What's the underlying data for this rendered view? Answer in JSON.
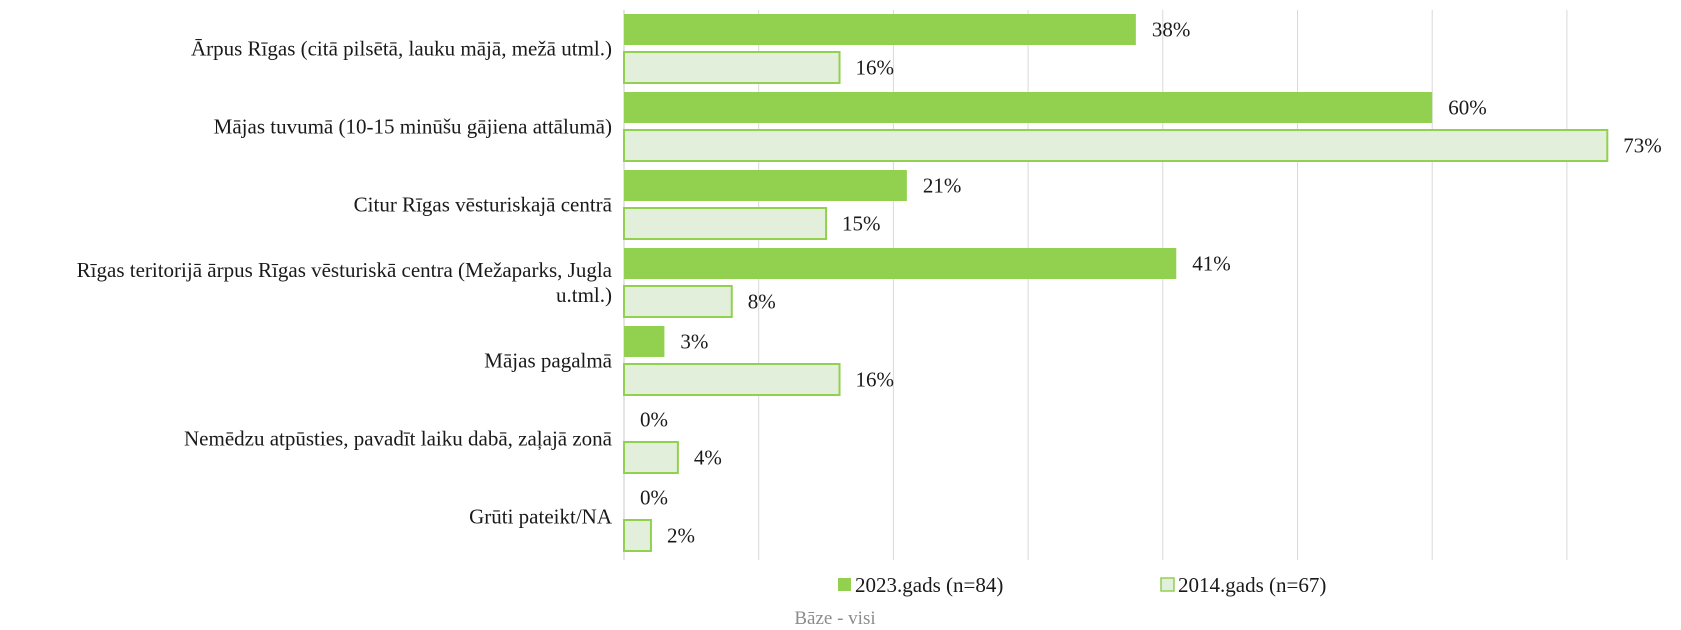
{
  "chart_data": {
    "type": "bar",
    "orientation": "horizontal",
    "categories": [
      [
        "Ārpus Rīgas (citā pilsētā, lauku mājā, mežā utml.)"
      ],
      [
        "Mājas tuvumā (10-15 minūšu gājiena attālumā)"
      ],
      [
        "Citur Rīgas vēsturiskajā centrā"
      ],
      [
        "Rīgas teritorijā ārpus Rīgas vēsturiskā centra (Mežaparks, Jugla",
        "u.tml.)"
      ],
      [
        "Mājas pagalmā"
      ],
      [
        "Nemēdzu atpūsties, pavadīt laiku dabā, zaļajā zonā"
      ],
      [
        "Grūti pateikt/NA"
      ]
    ],
    "series": [
      {
        "name": "2023.gads (n=84)",
        "values": [
          38,
          60,
          21,
          41,
          3,
          0,
          0
        ],
        "color": "#92d050"
      },
      {
        "name": "2014.gads (n=67)",
        "values": [
          16,
          73,
          15,
          8,
          16,
          4,
          2
        ],
        "color": "#e2efda",
        "stroke": "#92d050"
      }
    ],
    "value_suffix": "%",
    "xlim": [
      0,
      80
    ],
    "grid": true,
    "legend": "bottom",
    "footnote": "Bāze - visi"
  }
}
